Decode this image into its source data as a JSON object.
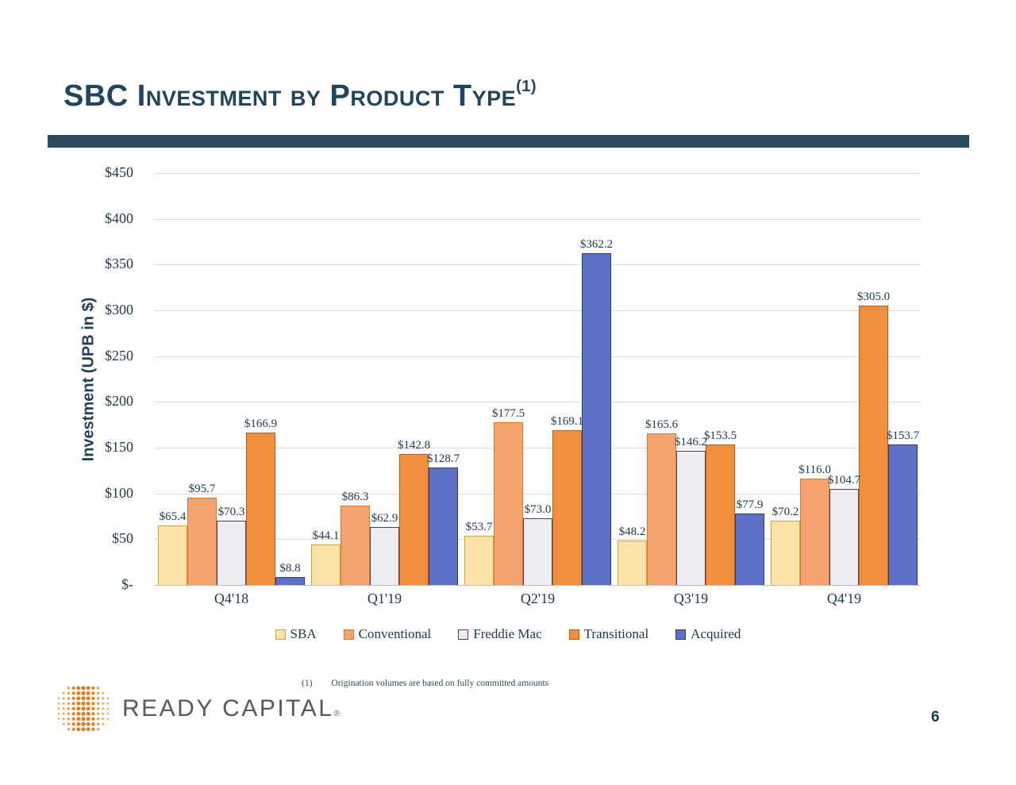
{
  "slide": {
    "title": "SBC Investment by Product Type",
    "title_superscript": "(1)",
    "page_number": "6",
    "footnote": {
      "marker": "(1)",
      "text": "Origination volumes are based on fully committed amounts"
    },
    "logo": {
      "text": "READY CAPITAL",
      "mark": "®"
    },
    "colors": {
      "accent_bar": "#2B4B5E",
      "title_text": "#20455C",
      "axis_text": "#203A54",
      "logo_dot_dark": "#E07E20",
      "logo_dot_light": "#EF9D3F"
    }
  },
  "chart_data": {
    "type": "bar",
    "title": "SBC Investment by Product Type (1)",
    "xlabel": "",
    "ylabel": "Investment (UPB in $)",
    "ylim": [
      0,
      450
    ],
    "ytick_step": 50,
    "ytick_labels": [
      "$-",
      "$50",
      "$100",
      "$150",
      "$200",
      "$250",
      "$300",
      "$350",
      "$400",
      "$450"
    ],
    "grid": true,
    "legend_position": "bottom",
    "categories": [
      "Q4'18",
      "Q1'19",
      "Q2'19",
      "Q3'19",
      "Q4'19"
    ],
    "series": [
      {
        "name": "SBA",
        "fill": "#FDE3A9",
        "border": "#DF9F35",
        "values": [
          65.4,
          44.1,
          53.7,
          48.2,
          70.2
        ],
        "labels": [
          "$65.4",
          "$44.1",
          "$53.7",
          "$48.2",
          "$70.2"
        ]
      },
      {
        "name": "Conventional",
        "fill": "#F5A470",
        "border": "#E2751E",
        "values": [
          95.7,
          86.3,
          177.5,
          165.6,
          116.0
        ],
        "labels": [
          "$95.7",
          "$86.3",
          "$177.5",
          "$165.6",
          "$116.0"
        ]
      },
      {
        "name": "Freddie Mac",
        "fill": "#ECECF2",
        "border": "#4F3D63",
        "values": [
          70.3,
          62.9,
          73.0,
          146.2,
          104.7
        ],
        "labels": [
          "$70.3",
          "$62.9",
          "$73.0",
          "$146.2",
          "$104.7"
        ]
      },
      {
        "name": "Transitional",
        "fill": "#F08F3C",
        "border": "#C55A11",
        "values": [
          166.9,
          142.8,
          169.1,
          153.5,
          305.0
        ],
        "labels": [
          "$166.9",
          "$142.8",
          "$169.1",
          "$153.5",
          "$305.0"
        ]
      },
      {
        "name": "Acquired",
        "fill": "#5C72C8",
        "border": "#2C3A6E",
        "values": [
          8.8,
          128.7,
          362.2,
          77.9,
          153.7
        ],
        "labels": [
          "$8.8",
          "$128.7",
          "$362.2",
          "$77.9",
          "$153.7"
        ]
      }
    ]
  }
}
